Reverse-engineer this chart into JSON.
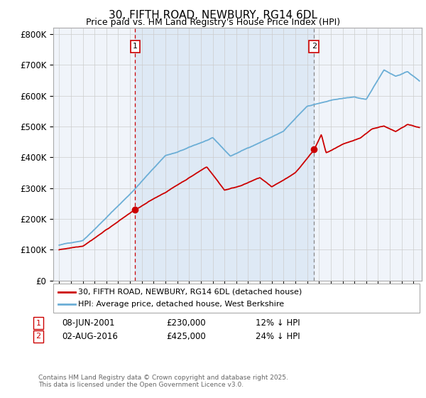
{
  "title": "30, FIFTH ROAD, NEWBURY, RG14 6DL",
  "subtitle": "Price paid vs. HM Land Registry's House Price Index (HPI)",
  "ylabel_ticks": [
    "£0",
    "£100K",
    "£200K",
    "£300K",
    "£400K",
    "£500K",
    "£600K",
    "£700K",
    "£800K"
  ],
  "ytick_values": [
    0,
    100000,
    200000,
    300000,
    400000,
    500000,
    600000,
    700000,
    800000
  ],
  "ylim": [
    0,
    820000
  ],
  "xlim_start": 1994.5,
  "xlim_end": 2025.7,
  "hpi_color": "#6baed6",
  "price_color": "#cc0000",
  "vline1_color": "#cc0000",
  "vline2_color": "#888888",
  "marker1_year": 2001.44,
  "marker1_price": 230000,
  "marker2_year": 2016.58,
  "marker2_price": 425000,
  "legend_label1": "30, FIFTH ROAD, NEWBURY, RG14 6DL (detached house)",
  "legend_label2": "HPI: Average price, detached house, West Berkshire",
  "copyright": "Contains HM Land Registry data © Crown copyright and database right 2025.\nThis data is licensed under the Open Government Licence v3.0.",
  "background_color": "#f0f4fa",
  "shade_color": "#dce8f5",
  "grid_color": "#cccccc",
  "title_fontsize": 11,
  "subtitle_fontsize": 9,
  "tick_fontsize": 8.5
}
